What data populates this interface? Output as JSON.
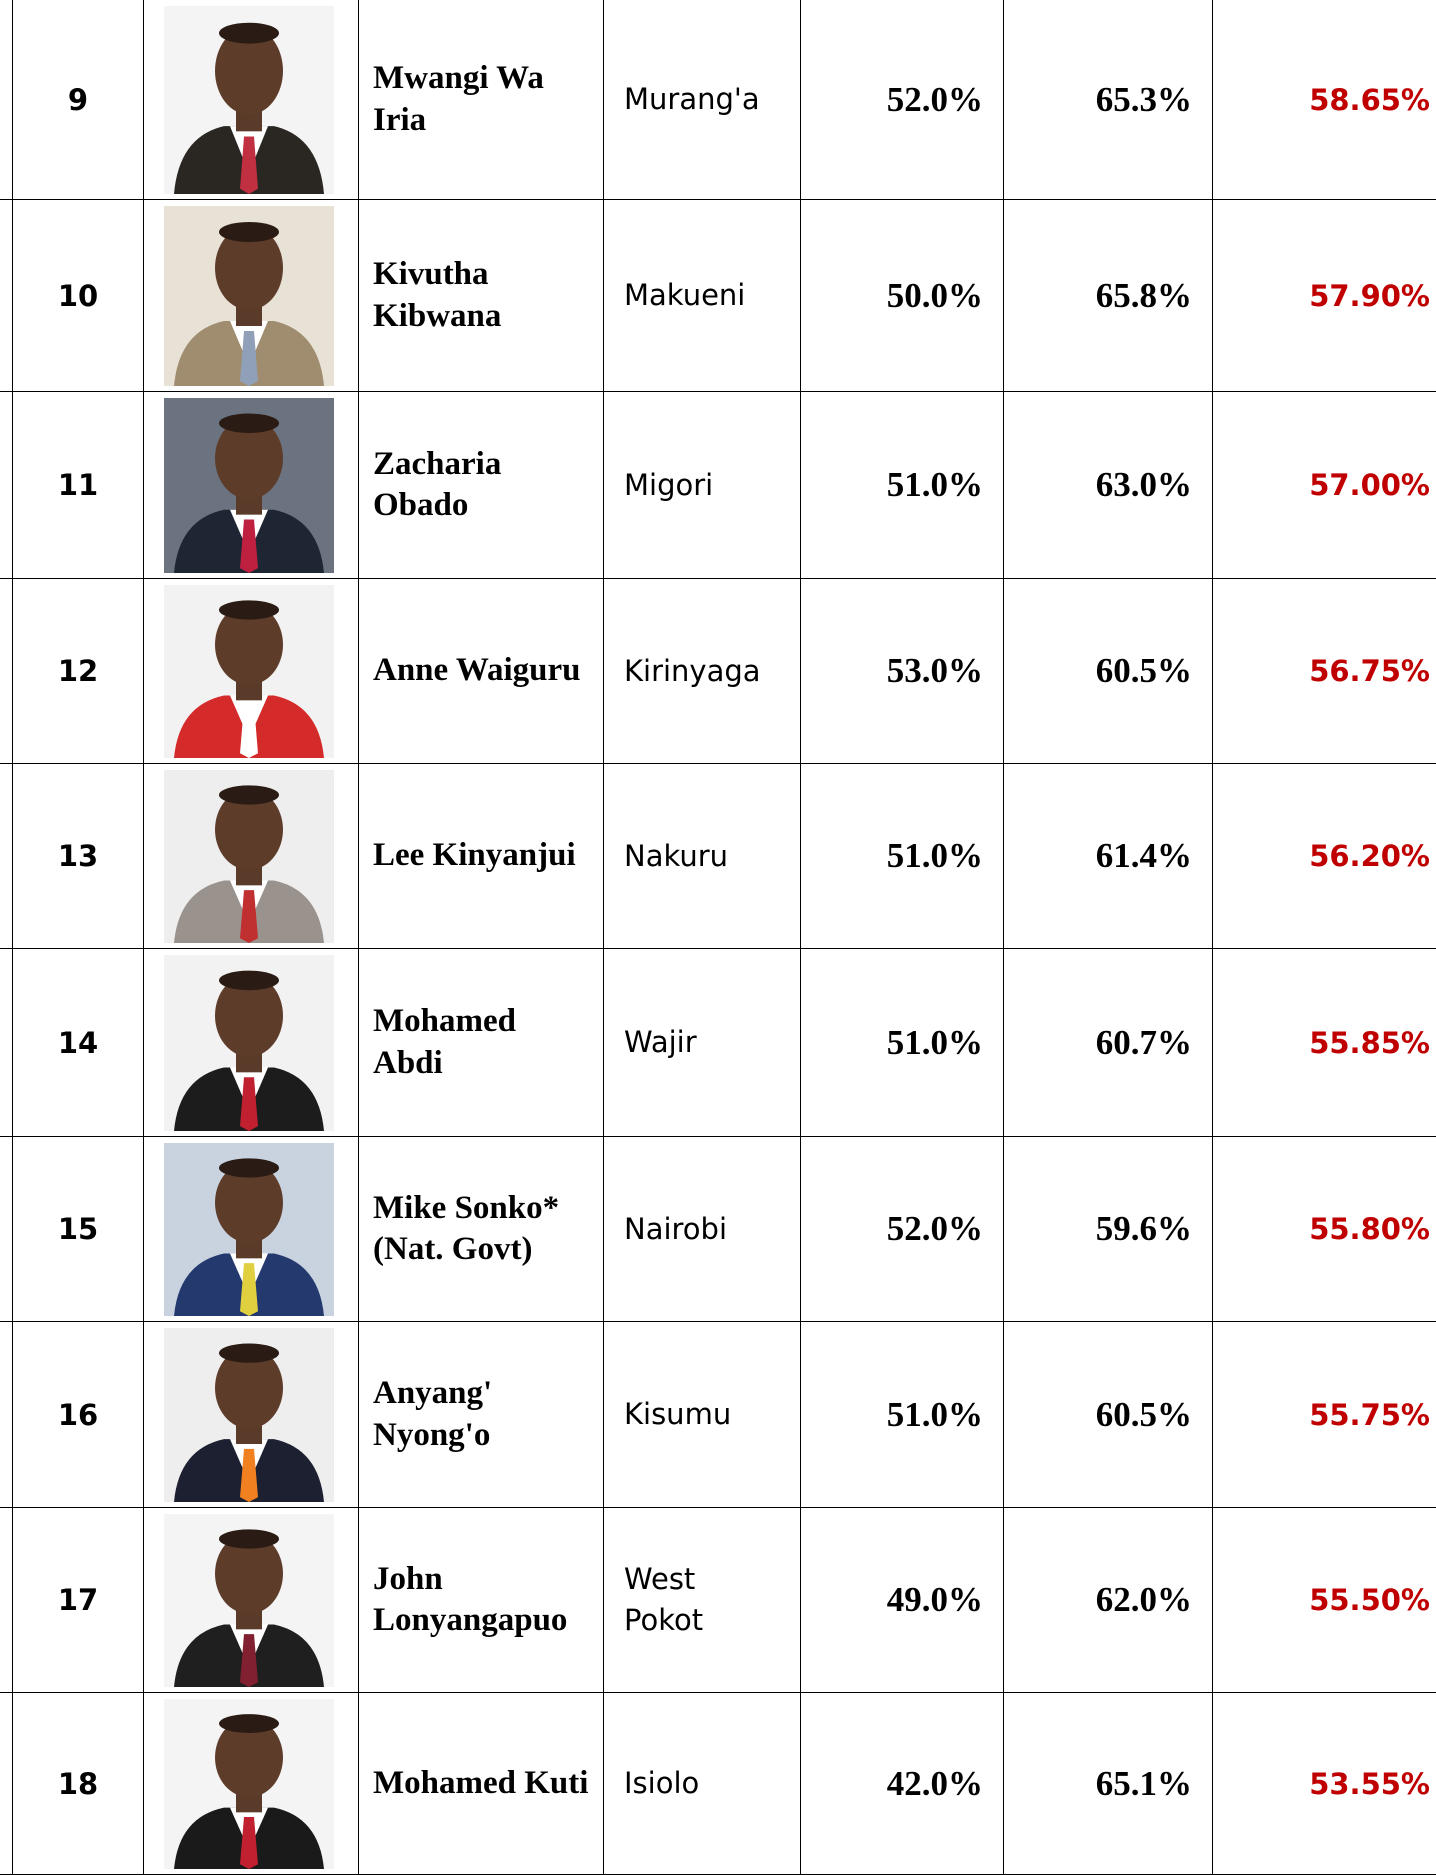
{
  "table": {
    "rows": [
      [
        "9",
        "Mwangi Wa Iria",
        "Murang'a",
        "52.0%",
        "65.3%",
        "58.65%"
      ],
      [
        "10",
        "Kivutha Kibwana",
        "Makueni",
        "50.0%",
        "65.8%",
        "57.90%"
      ],
      [
        "11",
        "Zacharia Obado",
        "Migori",
        "51.0%",
        "63.0%",
        "57.00%"
      ],
      [
        "12",
        "Anne Waiguru",
        "Kirinyaga",
        "53.0%",
        "60.5%",
        "56.75%"
      ],
      [
        "13",
        "Lee Kinyanjui",
        "Nakuru",
        "51.0%",
        "61.4%",
        "56.20%"
      ],
      [
        "14",
        "Mohamed Abdi",
        "Wajir",
        "51.0%",
        "60.7%",
        "55.85%"
      ],
      [
        "15",
        "Mike Sonko* (Nat. Govt)",
        "Nairobi",
        "52.0%",
        "59.6%",
        "55.80%"
      ],
      [
        "16",
        "Anyang' Nyong'o",
        "Kisumu",
        "51.0%",
        "60.5%",
        "55.75%"
      ],
      [
        "17",
        "John Lonyangapuo",
        "West Pokot",
        "49.0%",
        "62.0%",
        "55.50%"
      ],
      [
        "18",
        "Mohamed Kuti",
        "Isiolo",
        "42.0%",
        "65.1%",
        "53.55%"
      ]
    ]
  }
}
